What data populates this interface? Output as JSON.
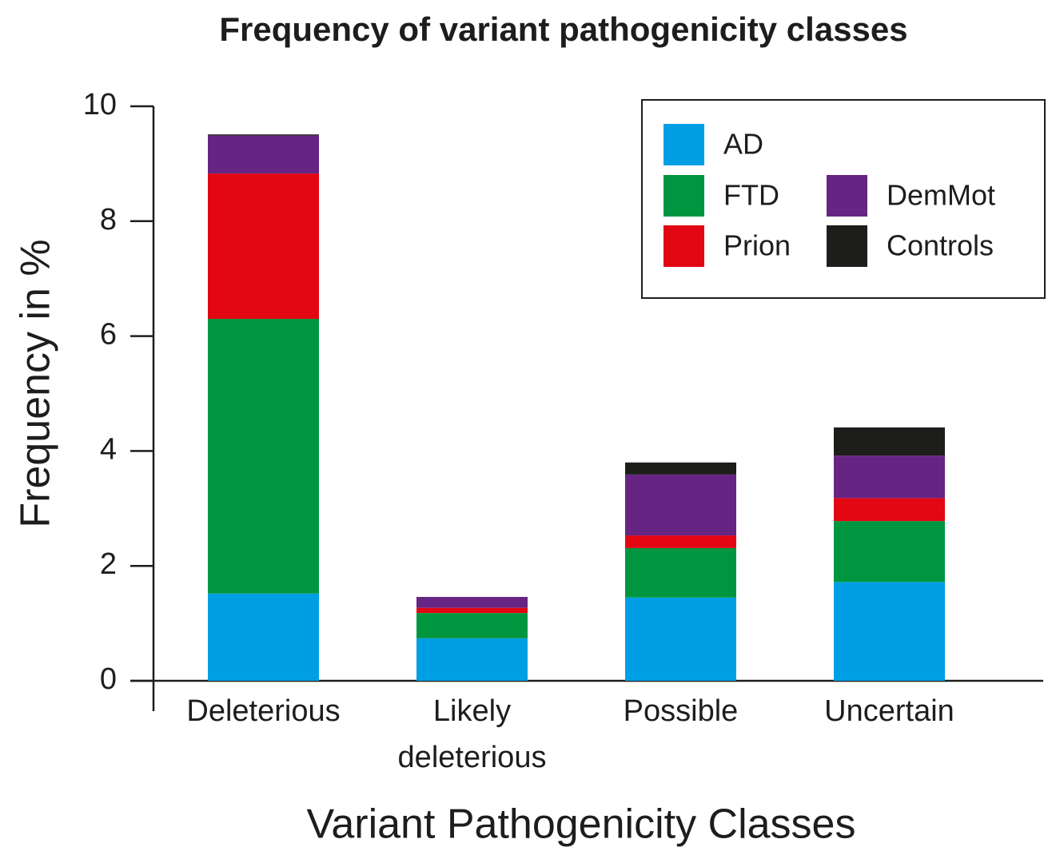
{
  "chart_data": {
    "type": "stacked_bar",
    "title": "Frequency of variant pathogenicity classes",
    "x_label": "Variant Pathogenicity Classes",
    "y_label": "Frequency in %",
    "categories": [
      "Deleterious",
      "Likely deleterious",
      "Possible",
      "Uncertain"
    ],
    "series": [
      {
        "name": "AD",
        "color": "#009fe3",
        "values": [
          1.52,
          0.74,
          1.45,
          1.72
        ]
      },
      {
        "name": "FTD",
        "color": "#009640",
        "values": [
          4.78,
          0.44,
          0.86,
          1.06
        ]
      },
      {
        "name": "Prion",
        "color": "#e30613",
        "values": [
          2.53,
          0.09,
          0.22,
          0.4
        ]
      },
      {
        "name": "DemMot",
        "color": "#662483",
        "values": [
          0.66,
          0.19,
          1.06,
          0.74
        ]
      },
      {
        "name": "Controls",
        "color": "#1d1d1b",
        "values": [
          0.02,
          0,
          0.21,
          0.49
        ]
      }
    ],
    "ylim": [
      0,
      10
    ],
    "yticks": [
      0,
      2,
      4,
      6,
      8,
      10
    ],
    "legend": "upper right"
  }
}
